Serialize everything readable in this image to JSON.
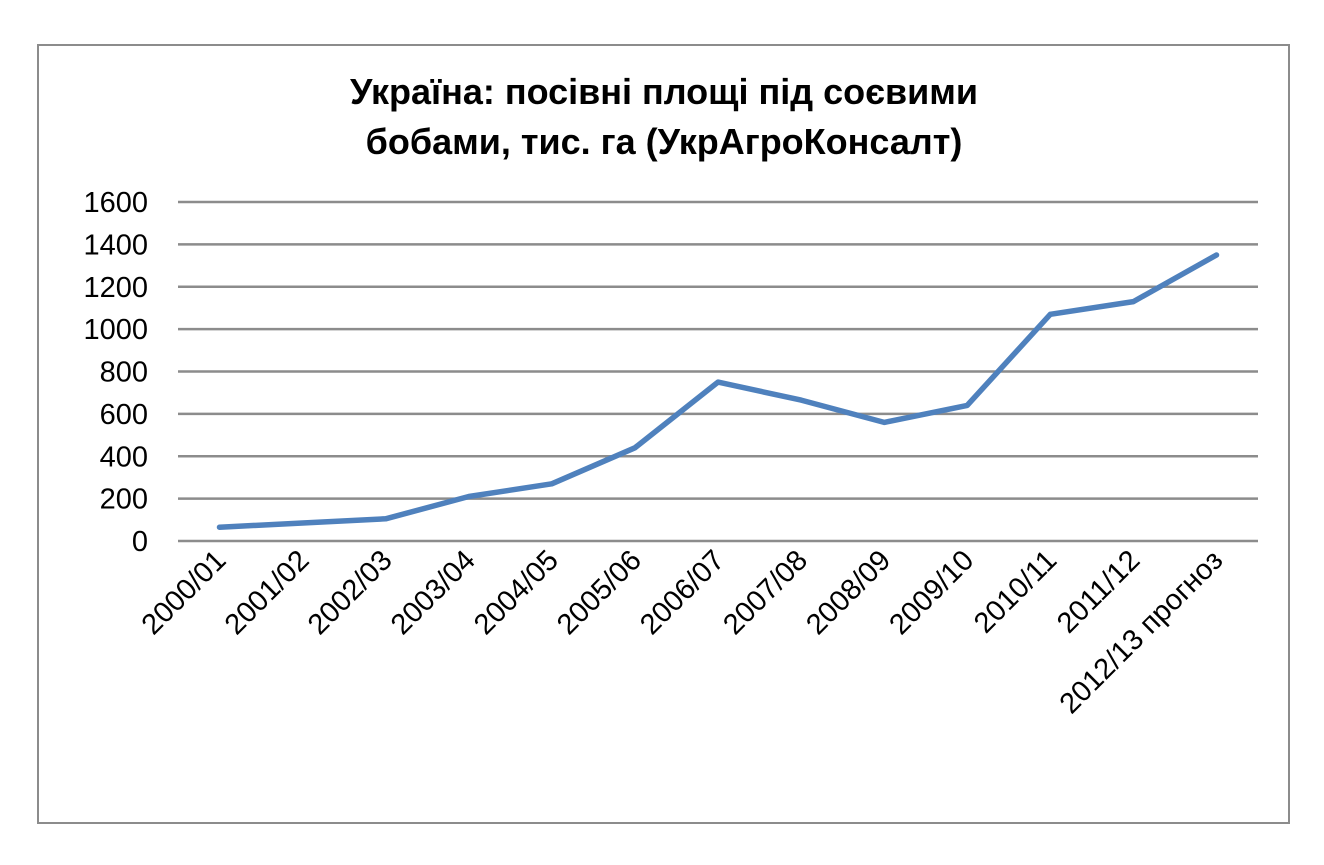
{
  "chart_data": {
    "type": "line",
    "title_lines": [
      "Україна: посівні площі під соєвими",
      "бобами, тис. га (УкрАгроКонсалт)"
    ],
    "categories": [
      "2000/01",
      "2001/02",
      "2002/03",
      "2003/04",
      "2004/05",
      "2005/06",
      "2006/07",
      "2007/08",
      "2008/09",
      "2009/10",
      "2010/11",
      "2011/12",
      "2012/13 прогноз"
    ],
    "series": [
      {
        "values": [
          65,
          85,
          105,
          210,
          270,
          440,
          750,
          665,
          560,
          640,
          1070,
          1130,
          1350
        ],
        "color": "#4f81bd"
      }
    ],
    "ylim": [
      0,
      1600
    ],
    "yticks": [
      0,
      200,
      400,
      600,
      800,
      1000,
      1200,
      1400,
      1600
    ],
    "grid": true,
    "legend": "none"
  }
}
